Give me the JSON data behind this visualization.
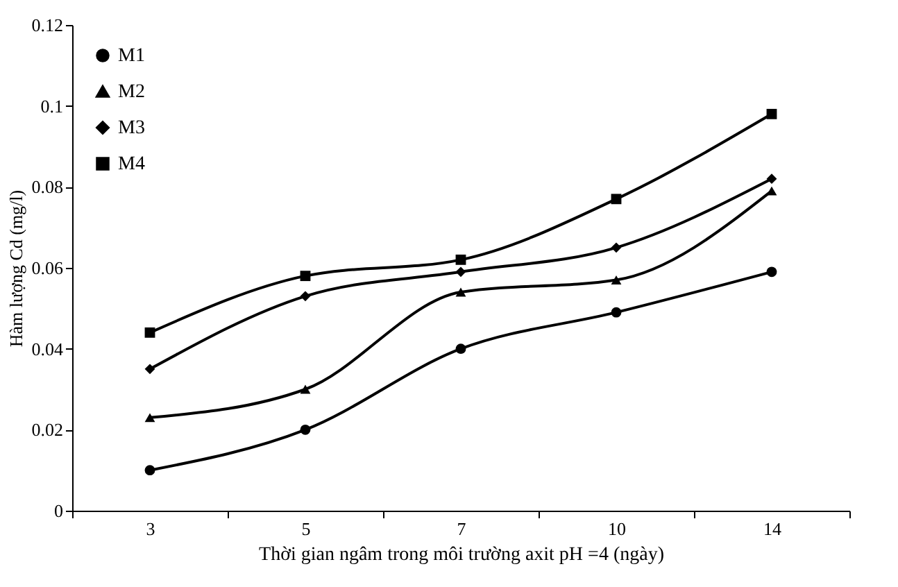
{
  "chart_data": {
    "type": "line",
    "xlabel": "Thời gian ngâm trong môi trường axit pH =4 (ngày)",
    "ylabel": "Hàm lượng Cd (mg/l)",
    "categories": [
      "3",
      "5",
      "7",
      "10",
      "14"
    ],
    "ylim": [
      0,
      0.12
    ],
    "yticks": [
      0,
      0.02,
      0.04,
      0.06,
      0.08,
      0.1,
      0.12
    ],
    "grid": false,
    "legend": "top left",
    "line_style": "solid",
    "series": [
      {
        "name": "M1",
        "color": "#000000",
        "marker": "circle",
        "values": [
          0.01,
          0.02,
          0.04,
          0.049,
          0.059
        ]
      },
      {
        "name": "M2",
        "color": "#000000",
        "marker": "triangle",
        "values": [
          0.023,
          0.03,
          0.054,
          0.057,
          0.079
        ]
      },
      {
        "name": "M3",
        "color": "#000000",
        "marker": "diamond",
        "values": [
          0.035,
          0.053,
          0.059,
          0.065,
          0.082
        ]
      },
      {
        "name": "M4",
        "color": "#000000",
        "marker": "square",
        "values": [
          0.044,
          0.058,
          0.062,
          0.077,
          0.098
        ]
      }
    ]
  }
}
